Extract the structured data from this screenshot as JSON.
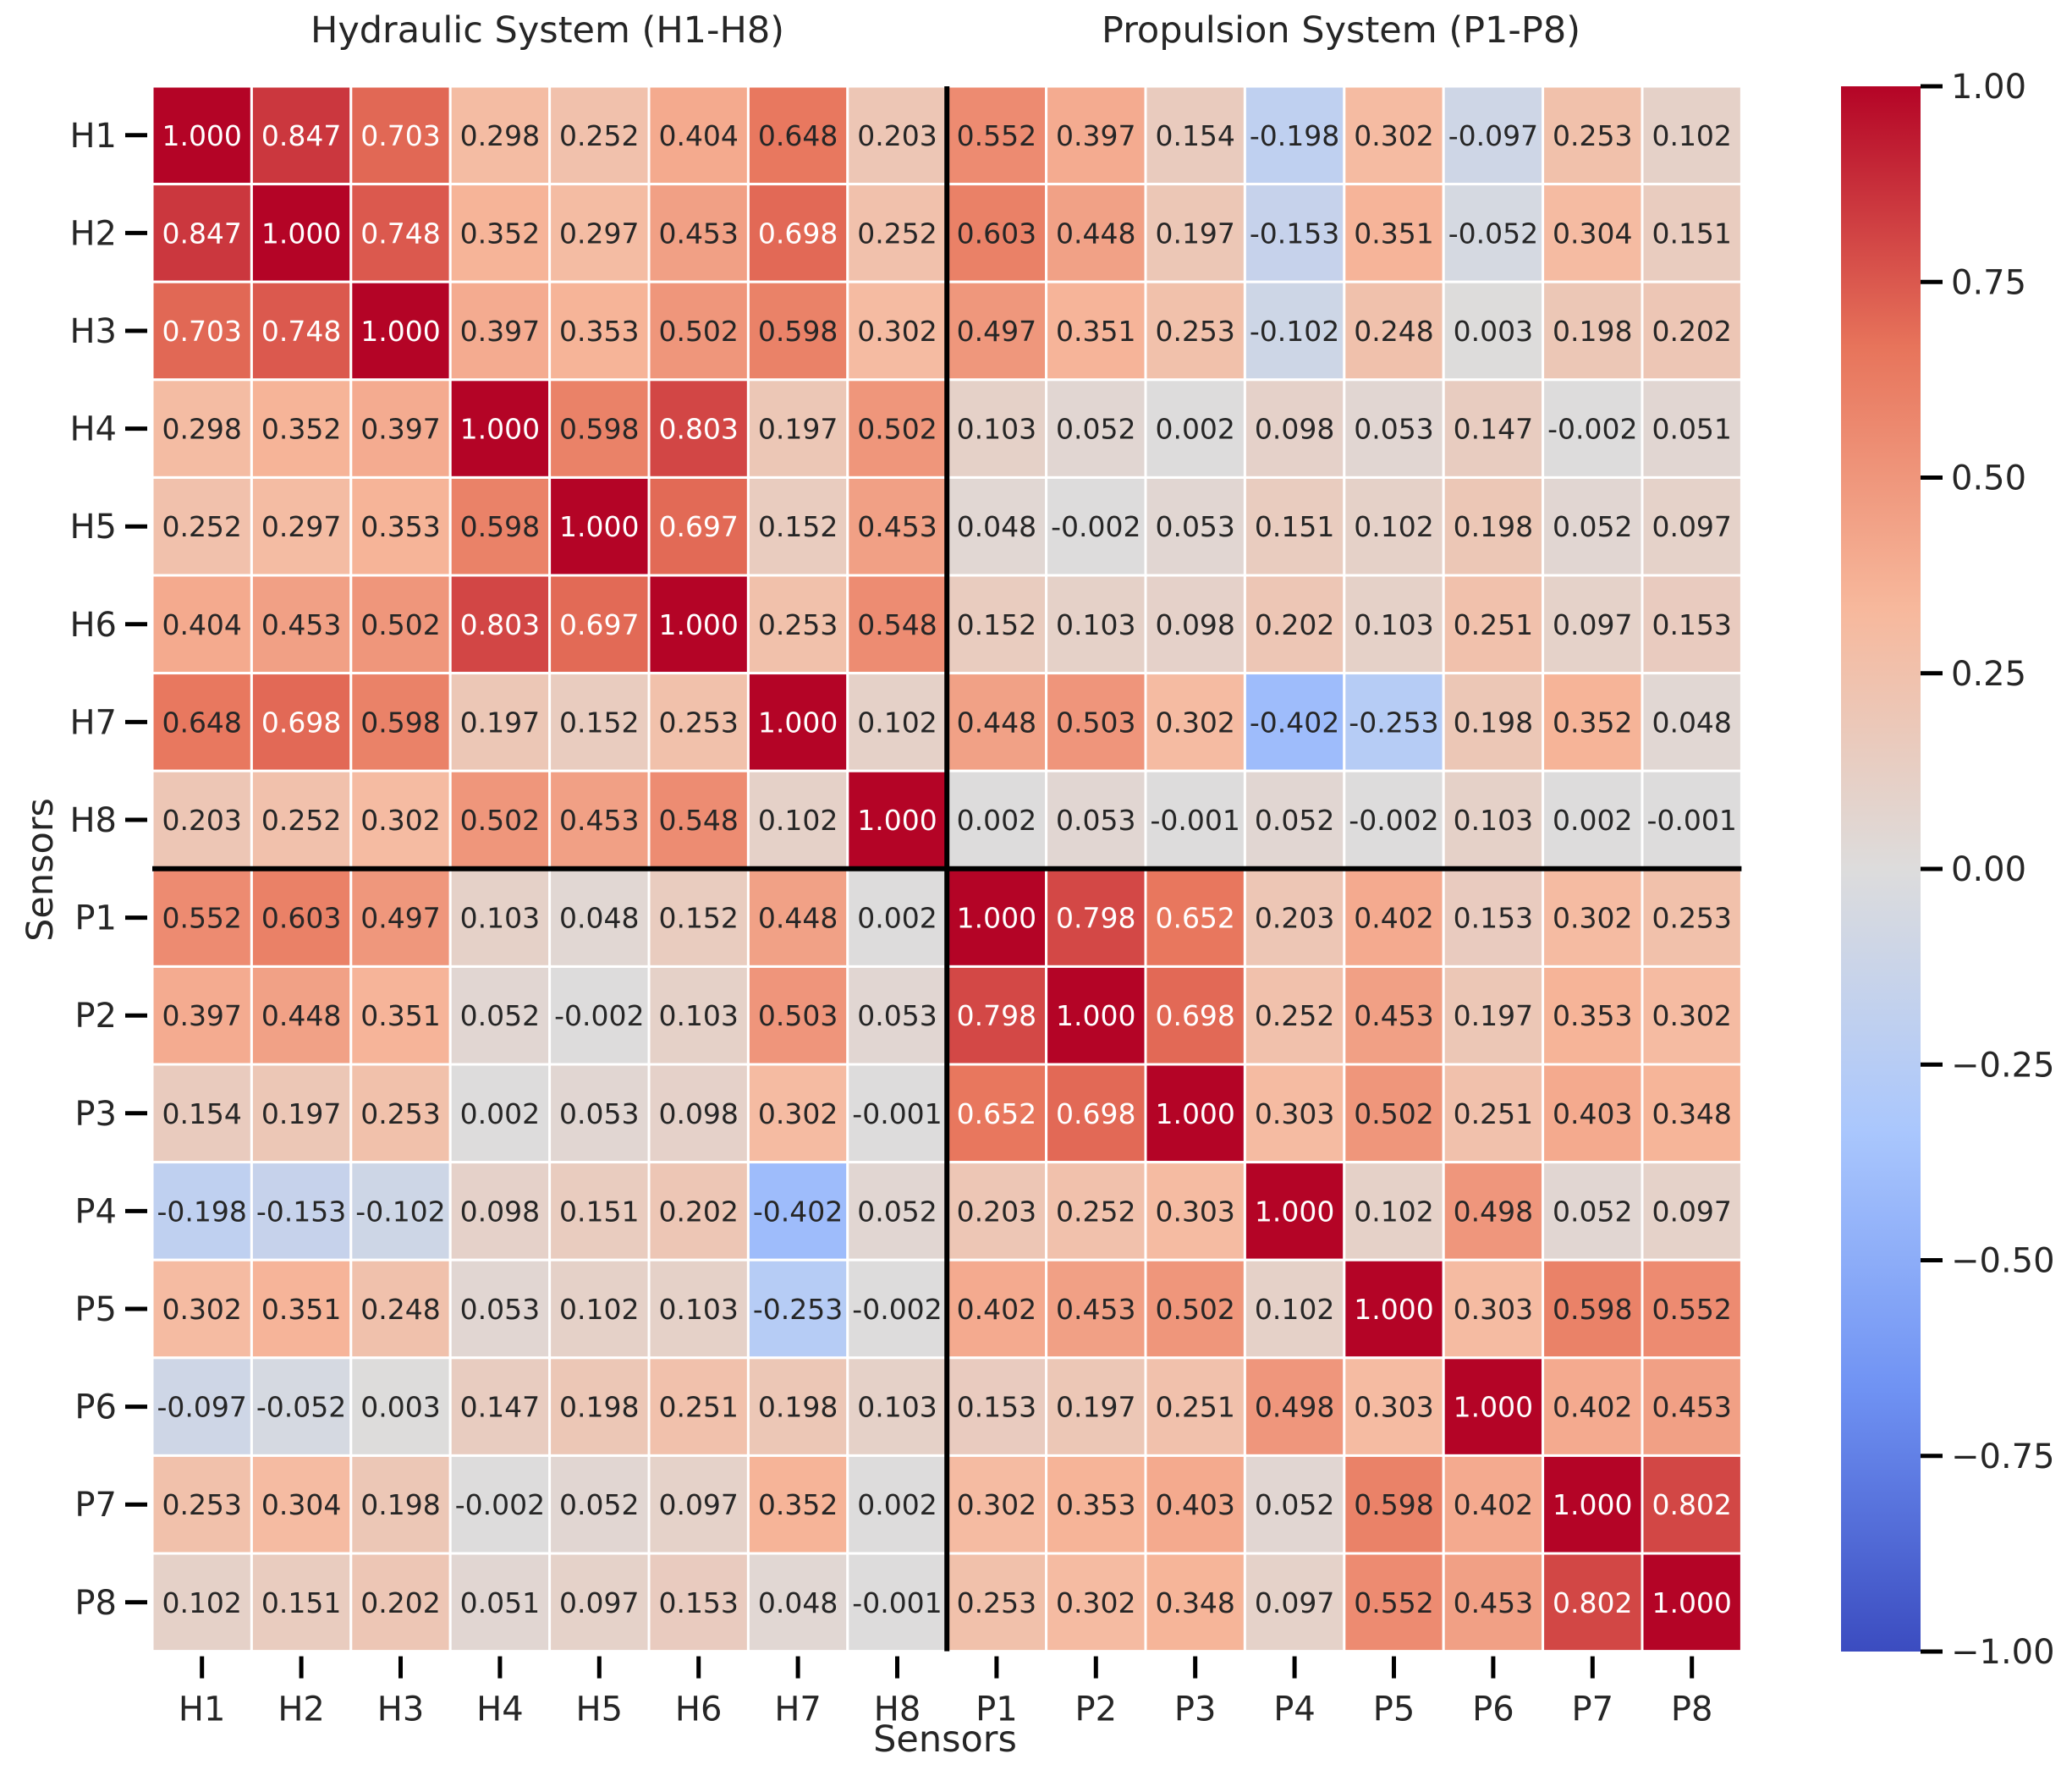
{
  "chart_data": {
    "type": "heatmap",
    "title": "",
    "group_titles": [
      "Hydraulic System (H1-H8)",
      "Propulsion System (P1-P8)"
    ],
    "xlabel": "Sensors",
    "ylabel": "Sensors",
    "x_categories": [
      "H1",
      "H2",
      "H3",
      "H4",
      "H5",
      "H6",
      "H7",
      "H8",
      "P1",
      "P2",
      "P3",
      "P4",
      "P5",
      "P6",
      "P7",
      "P8"
    ],
    "y_categories": [
      "H1",
      "H2",
      "H3",
      "H4",
      "H5",
      "H6",
      "H7",
      "H8",
      "P1",
      "P2",
      "P3",
      "P4",
      "P5",
      "P6",
      "P7",
      "P8"
    ],
    "value_format": "0.000",
    "values": [
      [
        1.0,
        0.847,
        0.703,
        0.298,
        0.252,
        0.404,
        0.648,
        0.203,
        0.552,
        0.397,
        0.154,
        -0.198,
        0.302,
        -0.097,
        0.253,
        0.102
      ],
      [
        0.847,
        1.0,
        0.748,
        0.352,
        0.297,
        0.453,
        0.698,
        0.252,
        0.603,
        0.448,
        0.197,
        -0.153,
        0.351,
        -0.052,
        0.304,
        0.151
      ],
      [
        0.703,
        0.748,
        1.0,
        0.397,
        0.353,
        0.502,
        0.598,
        0.302,
        0.497,
        0.351,
        0.253,
        -0.102,
        0.248,
        0.003,
        0.198,
        0.202
      ],
      [
        0.298,
        0.352,
        0.397,
        1.0,
        0.598,
        0.803,
        0.197,
        0.502,
        0.103,
        0.052,
        0.002,
        0.098,
        0.053,
        0.147,
        -0.002,
        0.051
      ],
      [
        0.252,
        0.297,
        0.353,
        0.598,
        1.0,
        0.697,
        0.152,
        0.453,
        0.048,
        -0.002,
        0.053,
        0.151,
        0.102,
        0.198,
        0.052,
        0.097
      ],
      [
        0.404,
        0.453,
        0.502,
        0.803,
        0.697,
        1.0,
        0.253,
        0.548,
        0.152,
        0.103,
        0.098,
        0.202,
        0.103,
        0.251,
        0.097,
        0.153
      ],
      [
        0.648,
        0.698,
        0.598,
        0.197,
        0.152,
        0.253,
        1.0,
        0.102,
        0.448,
        0.503,
        0.302,
        -0.402,
        -0.253,
        0.198,
        0.352,
        0.048
      ],
      [
        0.203,
        0.252,
        0.302,
        0.502,
        0.453,
        0.548,
        0.102,
        1.0,
        0.002,
        0.053,
        -0.001,
        0.052,
        -0.002,
        0.103,
        0.002,
        -0.001
      ],
      [
        0.552,
        0.603,
        0.497,
        0.103,
        0.048,
        0.152,
        0.448,
        0.002,
        1.0,
        0.798,
        0.652,
        0.203,
        0.402,
        0.153,
        0.302,
        0.253
      ],
      [
        0.397,
        0.448,
        0.351,
        0.052,
        -0.002,
        0.103,
        0.503,
        0.053,
        0.798,
        1.0,
        0.698,
        0.252,
        0.453,
        0.197,
        0.353,
        0.302
      ],
      [
        0.154,
        0.197,
        0.253,
        0.002,
        0.053,
        0.098,
        0.302,
        -0.001,
        0.652,
        0.698,
        1.0,
        0.303,
        0.502,
        0.251,
        0.403,
        0.348
      ],
      [
        -0.198,
        -0.153,
        -0.102,
        0.098,
        0.151,
        0.202,
        -0.402,
        0.052,
        0.203,
        0.252,
        0.303,
        1.0,
        0.102,
        0.498,
        0.052,
        0.097
      ],
      [
        0.302,
        0.351,
        0.248,
        0.053,
        0.102,
        0.103,
        -0.253,
        -0.002,
        0.402,
        0.453,
        0.502,
        0.102,
        1.0,
        0.303,
        0.598,
        0.552
      ],
      [
        -0.097,
        -0.052,
        0.003,
        0.147,
        0.198,
        0.251,
        0.198,
        0.103,
        0.153,
        0.197,
        0.251,
        0.498,
        0.303,
        1.0,
        0.402,
        0.453
      ],
      [
        0.253,
        0.304,
        0.198,
        -0.002,
        0.052,
        0.097,
        0.352,
        0.002,
        0.302,
        0.353,
        0.403,
        0.052,
        0.598,
        0.402,
        1.0,
        0.802
      ],
      [
        0.102,
        0.151,
        0.202,
        0.051,
        0.097,
        0.153,
        0.048,
        -0.001,
        0.253,
        0.302,
        0.348,
        0.097,
        0.552,
        0.453,
        0.802,
        1.0
      ]
    ],
    "colormap": "coolwarm",
    "vmin": -1.0,
    "vmax": 1.0,
    "colorbar_ticks": [
      1.0,
      0.75,
      0.5,
      0.25,
      0.0,
      -0.25,
      -0.5,
      -0.75,
      -1.0
    ],
    "colorbar_tick_labels": [
      "1.00",
      "0.75",
      "0.50",
      "0.25",
      "0.00",
      "−0.25",
      "−0.50",
      "−0.75",
      "−1.00"
    ],
    "divider_after_index": 8,
    "colors": {
      "coolwarm_stops": [
        "#3b4cc0",
        "#6f92f3",
        "#aac7fd",
        "#dddcdc",
        "#f7b89c",
        "#e7745b",
        "#b40426"
      ],
      "divider": "#000000",
      "cell_border": "#ffffff",
      "text_dark": "#262626",
      "text_light": "#ffffff"
    }
  }
}
